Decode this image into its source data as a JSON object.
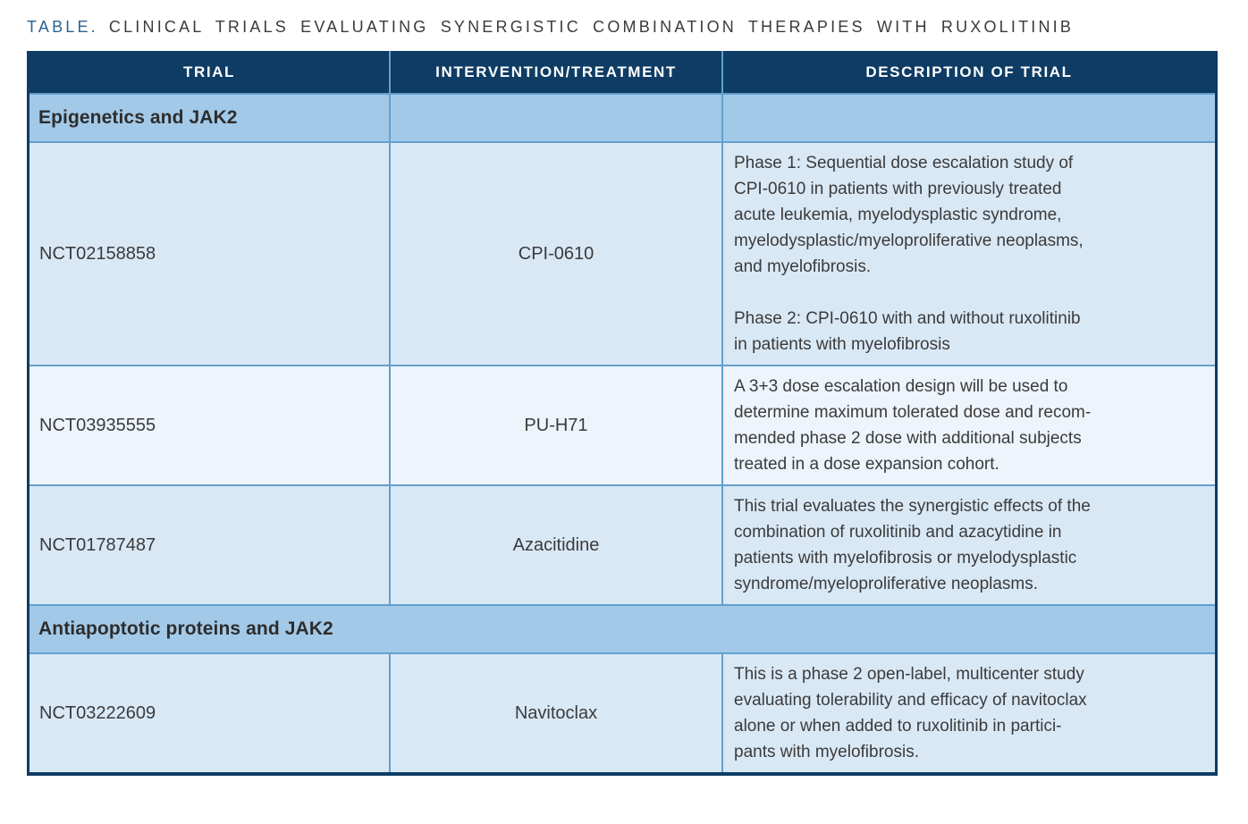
{
  "title": {
    "prefix": "TABLE.",
    "text": "CLINICAL TRIALS EVALUATING SYNERGISTIC COMBINATION THERAPIES WITH RUXOLITINIB"
  },
  "colors": {
    "header_bg": "#0e3c64",
    "header_text": "#ffffff",
    "section_bg": "#a3c9e8",
    "row_bg": "#d9e8f5",
    "row_bg_alt": "#edf4fb",
    "grid": "#62a0cd",
    "outer": "#0e3c64",
    "title_prefix": "#2c6390",
    "body_text": "#3b3b3b"
  },
  "table": {
    "columns": [
      "TRIAL",
      "INTERVENTION/TREATMENT",
      "DESCRIPTION OF TRIAL"
    ],
    "sections": [
      {
        "header": "Epigenetics and JAK2",
        "full_width": false,
        "rows": [
          {
            "trial": "NCT02158858",
            "intervention": "CPI-0610",
            "shade": "dark",
            "description": "Phase 1: Sequential dose escalation study of\nCPI-0610 in patients with previously treated\nacute leukemia, myelodysplastic syndrome,\nmyelodysplastic/myeloproliferative neoplasms,\nand myelofibrosis.\n\nPhase 2: CPI-0610 with and without ruxolitinib\nin patients with myelofibrosis"
          },
          {
            "trial": "NCT03935555",
            "intervention": "PU-H71",
            "shade": "light",
            "description": "A 3+3 dose escalation design will be used to\ndetermine maximum tolerated dose and recom-\nmended phase 2 dose with additional subjects\ntreated in a dose expansion cohort."
          },
          {
            "trial": "NCT01787487",
            "intervention": "Azacitidine",
            "shade": "dark",
            "description": "This trial evaluates the synergistic effects of the\ncombination of ruxolitinib and azacytidine in\npatients with myelofibrosis or myelodysplastic\nsyndrome/myeloproliferative neoplasms."
          }
        ]
      },
      {
        "header": "Antiapoptotic proteins and JAK2",
        "full_width": true,
        "rows": [
          {
            "trial": "NCT03222609",
            "intervention": "Navitoclax",
            "shade": "dark",
            "description": "This is a phase 2 open-label, multicenter study\nevaluating tolerability and efficacy of navitoclax\nalone or when added to ruxolitinib in partici-\npants with myelofibrosis."
          }
        ]
      }
    ]
  }
}
